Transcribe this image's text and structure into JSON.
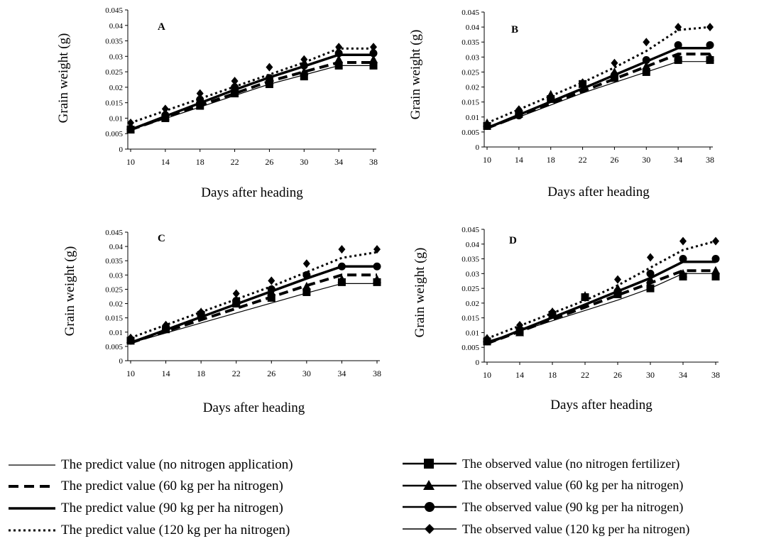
{
  "chart_data": [
    {
      "type": "line",
      "panel_label": "A",
      "xlabel": "Days after heading",
      "ylabel": "Grain weight (g)",
      "x": [
        10,
        14,
        18,
        22,
        26,
        30,
        34,
        38
      ],
      "ylim": [
        0,
        0.045
      ],
      "yticks": [
        "0",
        "0.005",
        "0.01",
        "0.015",
        "0.02",
        "0.025",
        "0.03",
        "0.035",
        "0.04",
        "0.045"
      ],
      "series": [
        {
          "name": "The predict value (no nitrogen application)",
          "values": [
            0.0062,
            0.0099,
            0.0136,
            0.0173,
            0.021,
            0.024,
            0.027,
            0.027
          ]
        },
        {
          "name": "The predict value (60 kg per ha nitrogen)",
          "values": [
            0.0063,
            0.0102,
            0.0141,
            0.018,
            0.0219,
            0.025,
            0.028,
            0.028
          ]
        },
        {
          "name": "The predict value (90 kg per ha nitrogen)",
          "values": [
            0.0063,
            0.0106,
            0.0149,
            0.0192,
            0.0232,
            0.0268,
            0.0305,
            0.0305
          ]
        },
        {
          "name": "The predict value (120 kg per ha nitrogen)",
          "values": [
            0.0085,
            0.0124,
            0.0163,
            0.0202,
            0.0241,
            0.028,
            0.0325,
            0.0325
          ]
        },
        {
          "name": "The observed value (no nitrogen fertilizer)",
          "values": [
            0.0063,
            0.01,
            0.014,
            0.018,
            0.021,
            0.0235,
            0.027,
            0.027
          ]
        },
        {
          "name": "The observed value (60 kg per ha nitrogen)",
          "values": [
            0.0075,
            0.0105,
            0.016,
            0.02,
            0.022,
            0.025,
            0.029,
            0.029
          ]
        },
        {
          "name": "The observed value (90 kg per ha nitrogen)",
          "values": [
            0.0065,
            0.011,
            0.016,
            0.02,
            0.023,
            0.027,
            0.031,
            0.031
          ]
        },
        {
          "name": "The observed value (120 kg per ha nitrogen)",
          "values": [
            0.0085,
            0.013,
            0.018,
            0.022,
            0.0265,
            0.029,
            0.033,
            0.033
          ]
        }
      ]
    },
    {
      "type": "line",
      "panel_label": "B",
      "xlabel": "Days after heading",
      "ylabel": "Grain weight (g)",
      "x": [
        10,
        14,
        18,
        22,
        26,
        30,
        34,
        38
      ],
      "ylim": [
        0,
        0.045
      ],
      "yticks": [
        "0",
        "0.005",
        "0.01",
        "0.015",
        "0.02",
        "0.025",
        "0.03",
        "0.035",
        "0.04",
        "0.045"
      ],
      "series": [
        {
          "name": "The predict value (no nitrogen application)",
          "values": [
            0.0062,
            0.01,
            0.014,
            0.018,
            0.0215,
            0.025,
            0.0285,
            0.0285
          ]
        },
        {
          "name": "The predict value (60 kg per ha nitrogen)",
          "values": [
            0.0063,
            0.0104,
            0.0145,
            0.0186,
            0.0227,
            0.0268,
            0.031,
            0.031
          ]
        },
        {
          "name": "The predict value (90 kg per ha nitrogen)",
          "values": [
            0.0063,
            0.0107,
            0.0151,
            0.0195,
            0.024,
            0.0285,
            0.033,
            0.033
          ]
        },
        {
          "name": "The predict value (120 kg per ha nitrogen)",
          "values": [
            0.008,
            0.0125,
            0.017,
            0.0215,
            0.0265,
            0.032,
            0.039,
            0.04
          ]
        },
        {
          "name": "The observed value (no nitrogen fertilizer)",
          "values": [
            0.007,
            0.011,
            0.016,
            0.021,
            0.023,
            0.025,
            0.029,
            0.029
          ]
        },
        {
          "name": "The observed value (60 kg per ha nitrogen)",
          "values": [
            0.008,
            0.012,
            0.0175,
            0.021,
            0.025,
            0.027,
            0.03,
            0.03
          ]
        },
        {
          "name": "The observed value (90 kg per ha nitrogen)",
          "values": [
            0.007,
            0.0105,
            0.016,
            0.021,
            0.024,
            0.029,
            0.034,
            0.034
          ]
        },
        {
          "name": "The observed value (120 kg per ha nitrogen)",
          "values": [
            0.0075,
            0.0125,
            0.017,
            0.0215,
            0.028,
            0.035,
            0.04,
            0.04
          ]
        }
      ]
    },
    {
      "type": "line",
      "panel_label": "C",
      "xlabel": "Days after heading",
      "ylabel": "Grain weight (g)",
      "x": [
        10,
        14,
        18,
        22,
        26,
        30,
        34,
        38
      ],
      "ylim": [
        0,
        0.045
      ],
      "yticks": [
        "0",
        "0.005",
        "0.01",
        "0.015",
        "0.02",
        "0.025",
        "0.03",
        "0.035",
        "0.04",
        "0.045"
      ],
      "series": [
        {
          "name": "The predict value (no nitrogen application)",
          "values": [
            0.0062,
            0.0097,
            0.0132,
            0.0167,
            0.0202,
            0.0237,
            0.027,
            0.027
          ]
        },
        {
          "name": "The predict value (60 kg per ha nitrogen)",
          "values": [
            0.0063,
            0.0103,
            0.0143,
            0.0183,
            0.0223,
            0.0263,
            0.03,
            0.03
          ]
        },
        {
          "name": "The predict value (90 kg per ha nitrogen)",
          "values": [
            0.0063,
            0.0108,
            0.0153,
            0.0198,
            0.0243,
            0.0288,
            0.033,
            0.033
          ]
        },
        {
          "name": "The predict value (120 kg per ha nitrogen)",
          "values": [
            0.008,
            0.0125,
            0.017,
            0.0215,
            0.026,
            0.031,
            0.036,
            0.038
          ]
        },
        {
          "name": "The observed value (no nitrogen fertilizer)",
          "values": [
            0.007,
            0.011,
            0.016,
            0.02,
            0.022,
            0.024,
            0.0275,
            0.0275
          ]
        },
        {
          "name": "The observed value (60 kg per ha nitrogen)",
          "values": [
            0.0075,
            0.012,
            0.017,
            0.021,
            0.024,
            0.026,
            0.0285,
            0.0285
          ]
        },
        {
          "name": "The observed value (90 kg per ha nitrogen)",
          "values": [
            0.007,
            0.011,
            0.0165,
            0.021,
            0.025,
            0.03,
            0.033,
            0.033
          ]
        },
        {
          "name": "The observed value (120 kg per ha nitrogen)",
          "values": [
            0.008,
            0.0125,
            0.017,
            0.0235,
            0.028,
            0.034,
            0.039,
            0.039
          ]
        }
      ]
    },
    {
      "type": "line",
      "panel_label": "D",
      "xlabel": "Days after heading",
      "ylabel": "Grain weight (g)",
      "x": [
        10,
        14,
        18,
        22,
        26,
        30,
        34,
        38
      ],
      "ylim": [
        0,
        0.045
      ],
      "yticks": [
        "0",
        "0.005",
        "0.01",
        "0.015",
        "0.02",
        "0.025",
        "0.03",
        "0.035",
        "0.04",
        "0.045"
      ],
      "series": [
        {
          "name": "The predict value (no nitrogen application)",
          "values": [
            0.007,
            0.0105,
            0.014,
            0.0175,
            0.021,
            0.025,
            0.03,
            0.03
          ]
        },
        {
          "name": "The predict value (60 kg per ha nitrogen)",
          "values": [
            0.0063,
            0.0104,
            0.0145,
            0.0186,
            0.0227,
            0.0268,
            0.031,
            0.031
          ]
        },
        {
          "name": "The predict value (90 kg per ha nitrogen)",
          "values": [
            0.0063,
            0.0107,
            0.0151,
            0.0195,
            0.024,
            0.0285,
            0.034,
            0.034
          ]
        },
        {
          "name": "The predict value (120 kg per ha nitrogen)",
          "values": [
            0.008,
            0.0123,
            0.0166,
            0.0209,
            0.026,
            0.032,
            0.038,
            0.041
          ]
        },
        {
          "name": "The observed value (no nitrogen fertilizer)",
          "values": [
            0.007,
            0.0105,
            0.016,
            0.022,
            0.023,
            0.025,
            0.029,
            0.029
          ]
        },
        {
          "name": "The observed value (60 kg per ha nitrogen)",
          "values": [
            0.008,
            0.01,
            0.017,
            0.0225,
            0.025,
            0.028,
            0.03,
            0.031
          ]
        },
        {
          "name": "The observed value (90 kg per ha nitrogen)",
          "values": [
            0.007,
            0.011,
            0.0165,
            0.022,
            0.024,
            0.03,
            0.035,
            0.035
          ]
        },
        {
          "name": "The observed value (120 kg per ha nitrogen)",
          "values": [
            0.008,
            0.0125,
            0.017,
            0.022,
            0.028,
            0.0355,
            0.041,
            0.041
          ]
        }
      ]
    }
  ],
  "legend": {
    "predicted": [
      {
        "label": "The predict value (no nitrogen application)",
        "style": "thin"
      },
      {
        "label": "The predict value (60 kg per ha nitrogen)",
        "style": "dashed"
      },
      {
        "label": "The predict value (90 kg per ha nitrogen)",
        "style": "thick"
      },
      {
        "label": "The predict value (120 kg per ha nitrogen)",
        "style": "dotted"
      }
    ],
    "observed": [
      {
        "label": "The observed value (no nitrogen fertilizer)",
        "marker": "square"
      },
      {
        "label": "The observed value (60 kg per ha nitrogen)",
        "marker": "triangle"
      },
      {
        "label": "The observed value (90 kg per ha nitrogen)",
        "marker": "circle"
      },
      {
        "label": "The observed value (120 kg per ha nitrogen)",
        "marker": "diamond"
      }
    ]
  },
  "colors": {
    "ink": "#000000",
    "background": "#ffffff"
  }
}
